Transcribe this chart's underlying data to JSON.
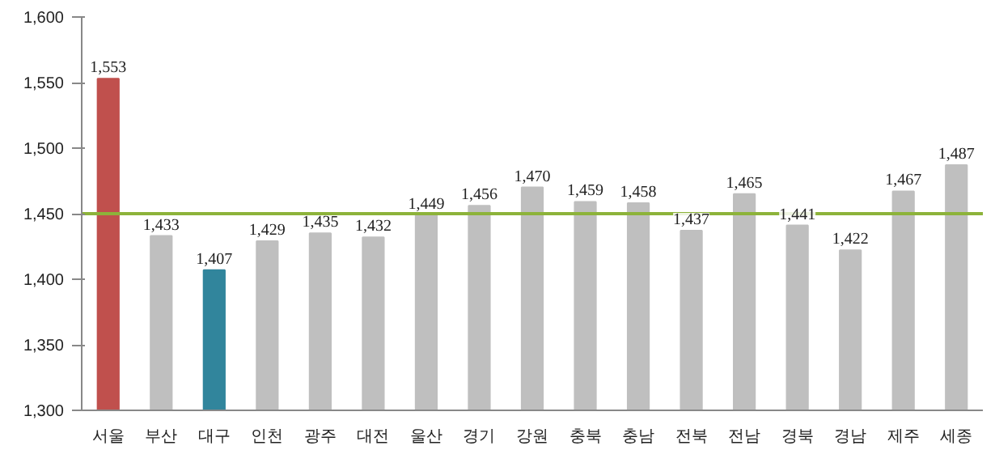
{
  "chart_data": {
    "type": "bar",
    "categories": [
      "서울",
      "부산",
      "대구",
      "인천",
      "광주",
      "대전",
      "울산",
      "경기",
      "강원",
      "충북",
      "충남",
      "전북",
      "전남",
      "경북",
      "경남",
      "제주",
      "세종"
    ],
    "values": [
      1553,
      1433,
      1407,
      1429,
      1435,
      1432,
      1449,
      1456,
      1470,
      1459,
      1458,
      1437,
      1465,
      1441,
      1422,
      1467,
      1487
    ],
    "colors": [
      "#c0504d",
      "#bfbfbf",
      "#31859c",
      "#bfbfbf",
      "#bfbfbf",
      "#bfbfbf",
      "#bfbfbf",
      "#bfbfbf",
      "#bfbfbf",
      "#bfbfbf",
      "#bfbfbf",
      "#bfbfbf",
      "#bfbfbf",
      "#bfbfbf",
      "#bfbfbf",
      "#bfbfbf",
      "#bfbfbf"
    ],
    "value_labels": [
      "1,553",
      "1,433",
      "1,407",
      "1,429",
      "1,435",
      "1,432",
      "1,449",
      "1,456",
      "1,470",
      "1,459",
      "1,458",
      "1,437",
      "1,465",
      "1,441",
      "1,422",
      "1,467",
      "1,487"
    ],
    "ylim": [
      1300,
      1600
    ],
    "yticks": [
      {
        "value": 1300,
        "label": "1,300"
      },
      {
        "value": 1350,
        "label": "1,350"
      },
      {
        "value": 1400,
        "label": "1,400"
      },
      {
        "value": 1450,
        "label": "1,450"
      },
      {
        "value": 1500,
        "label": "1,500"
      },
      {
        "value": 1550,
        "label": "1,550"
      },
      {
        "value": 1600,
        "label": "1,600"
      }
    ],
    "ref_lines": [
      {
        "axis": "y",
        "value": 1450,
        "label": null,
        "color": "#8db33a"
      }
    ],
    "grid": false
  }
}
